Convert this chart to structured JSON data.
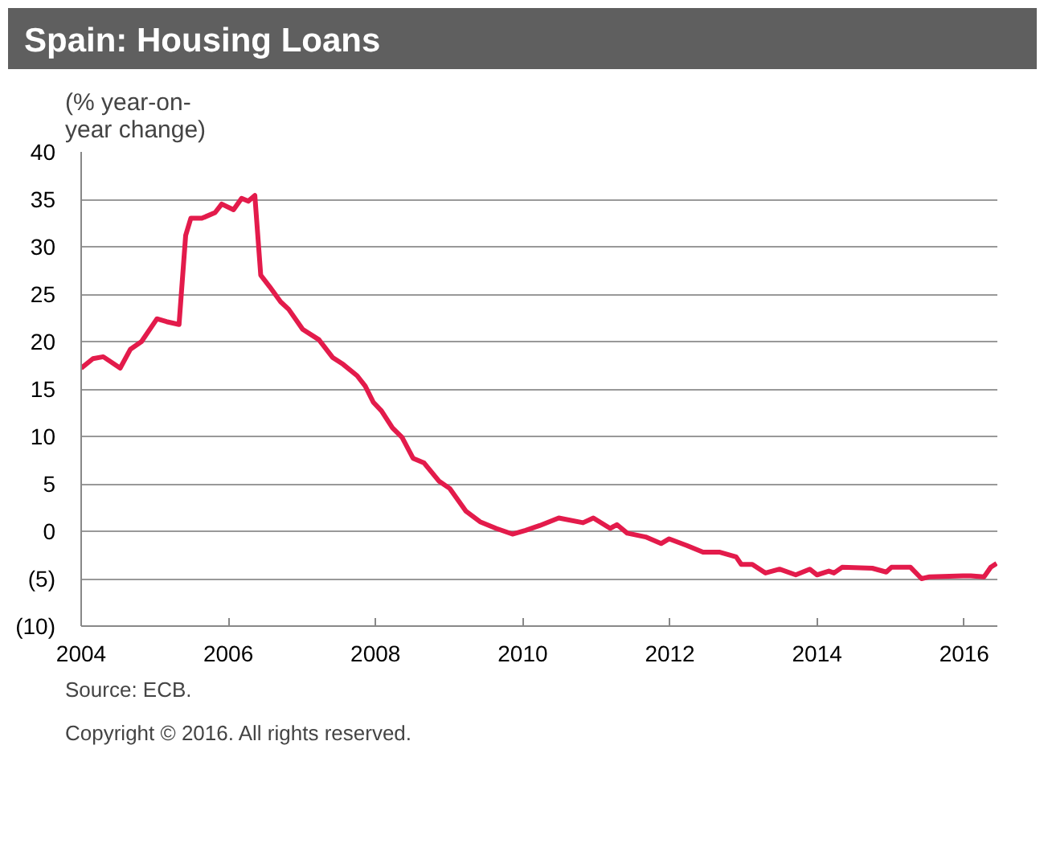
{
  "chart_data": {
    "type": "line",
    "title": "Spain: Housing Loans",
    "ylabel": "(% year-on-\nyear change)",
    "annotations": [
      "Source: ECB.",
      "Copyright © 2016. All rights reserved."
    ],
    "x": [
      2004.0,
      2004.16,
      2004.3,
      2004.53,
      2004.67,
      2004.82,
      2005.03,
      2005.16,
      2005.33,
      2005.42,
      2005.49,
      2005.64,
      2005.82,
      2005.91,
      2006.07,
      2006.18,
      2006.27,
      2006.36,
      2006.44,
      2006.56,
      2006.71,
      2006.82,
      2007.01,
      2007.23,
      2007.42,
      2007.56,
      2007.75,
      2007.86,
      2007.97,
      2008.08,
      2008.23,
      2008.36,
      2008.51,
      2008.66,
      2008.86,
      2009.01,
      2009.23,
      2009.42,
      2009.64,
      2009.86,
      2010.04,
      2010.23,
      2010.49,
      2010.82,
      2010.96,
      2011.19,
      2011.28,
      2011.42,
      2011.67,
      2011.88,
      2011.99,
      2012.23,
      2012.45,
      2012.67,
      2012.9,
      2012.97,
      2013.12,
      2013.3,
      2013.49,
      2013.71,
      2013.9,
      2014.0,
      2014.16,
      2014.23,
      2014.34,
      2014.75,
      2014.94,
      2015.01,
      2015.27,
      2015.42,
      2015.53,
      2015.98,
      2016.09,
      2016.27,
      2016.36,
      2016.44
    ],
    "series": [
      {
        "color": "#e31b4b",
        "values": [
          17.2,
          18.2,
          18.4,
          17.2,
          19.2,
          20,
          22.4,
          22.1,
          21.8,
          31.2,
          33,
          33,
          33.6,
          34.5,
          33.9,
          35.1,
          34.8,
          35.4,
          27,
          25.8,
          24.2,
          23.4,
          21.3,
          20.2,
          18.3,
          17.6,
          16.4,
          15.3,
          13.6,
          12.7,
          10.9,
          9.9,
          7.7,
          7.2,
          5.3,
          4.5,
          2.1,
          1.0,
          0.3,
          -0.3,
          0.1,
          0.6,
          1.4,
          0.9,
          1.4,
          0.3,
          0.7,
          -0.2,
          -0.6,
          -1.3,
          -0.8,
          -1.5,
          -2.2,
          -2.2,
          -2.7,
          -3.5,
          -3.5,
          -4.4,
          -4.0,
          -4.6,
          -4.0,
          -4.6,
          -4.2,
          -4.4,
          -3.8,
          -3.9,
          -4.3,
          -3.8,
          -3.8,
          -5.0,
          -4.8,
          -4.7,
          -4.7,
          -4.8,
          -3.8,
          -3.4
        ]
      }
    ],
    "xlim": [
      2004,
      2016.45
    ],
    "xticks": [
      2004,
      2006,
      2008,
      2010,
      2012,
      2014,
      2016
    ],
    "ylim": [
      -10,
      40
    ],
    "yticks": [
      {
        "value": -10,
        "label": "(10)"
      },
      {
        "value": -5,
        "label": "(5)"
      },
      0,
      5,
      10,
      15,
      20,
      25,
      30,
      35,
      40
    ],
    "grid": "y",
    "marker": "none",
    "line_style": "solid"
  }
}
